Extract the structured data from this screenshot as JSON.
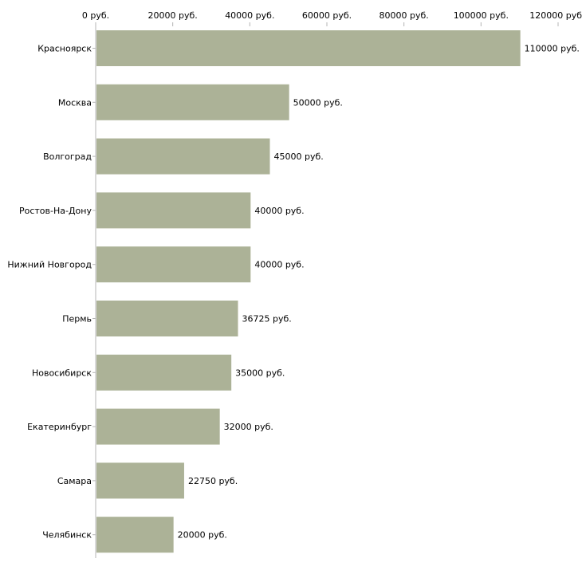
{
  "chart_data": {
    "type": "bar",
    "orientation": "horizontal",
    "title": "",
    "xlabel": "",
    "ylabel": "",
    "xlim": [
      0,
      120000
    ],
    "ticks": [
      0,
      20000,
      40000,
      60000,
      80000,
      100000,
      120000
    ],
    "tick_labels": [
      "0 руб.",
      "20000 руб.",
      "40000 руб.",
      "60000 руб.",
      "80000 руб.",
      "100000 руб.",
      "120000 руб"
    ],
    "categories": [
      "Красноярск",
      "Москва",
      "Волгоград",
      "Ростов-На-Дону",
      "Нижний Новгород",
      "Пермь",
      "Новосибирск",
      "Екатеринбург",
      "Самара",
      "Челябинск"
    ],
    "values": [
      110000,
      50000,
      45000,
      40000,
      40000,
      36725,
      35000,
      32000,
      22750,
      20000
    ],
    "value_labels": [
      "110000 руб.",
      "50000 руб.",
      "45000 руб.",
      "40000 руб.",
      "40000 руб.",
      "36725 руб.",
      "35000 руб.",
      "32000 руб.",
      "22750 руб.",
      "20000 руб."
    ],
    "bar_color": "#acb297",
    "axis_color": "#b4b4b4",
    "grid": false
  }
}
